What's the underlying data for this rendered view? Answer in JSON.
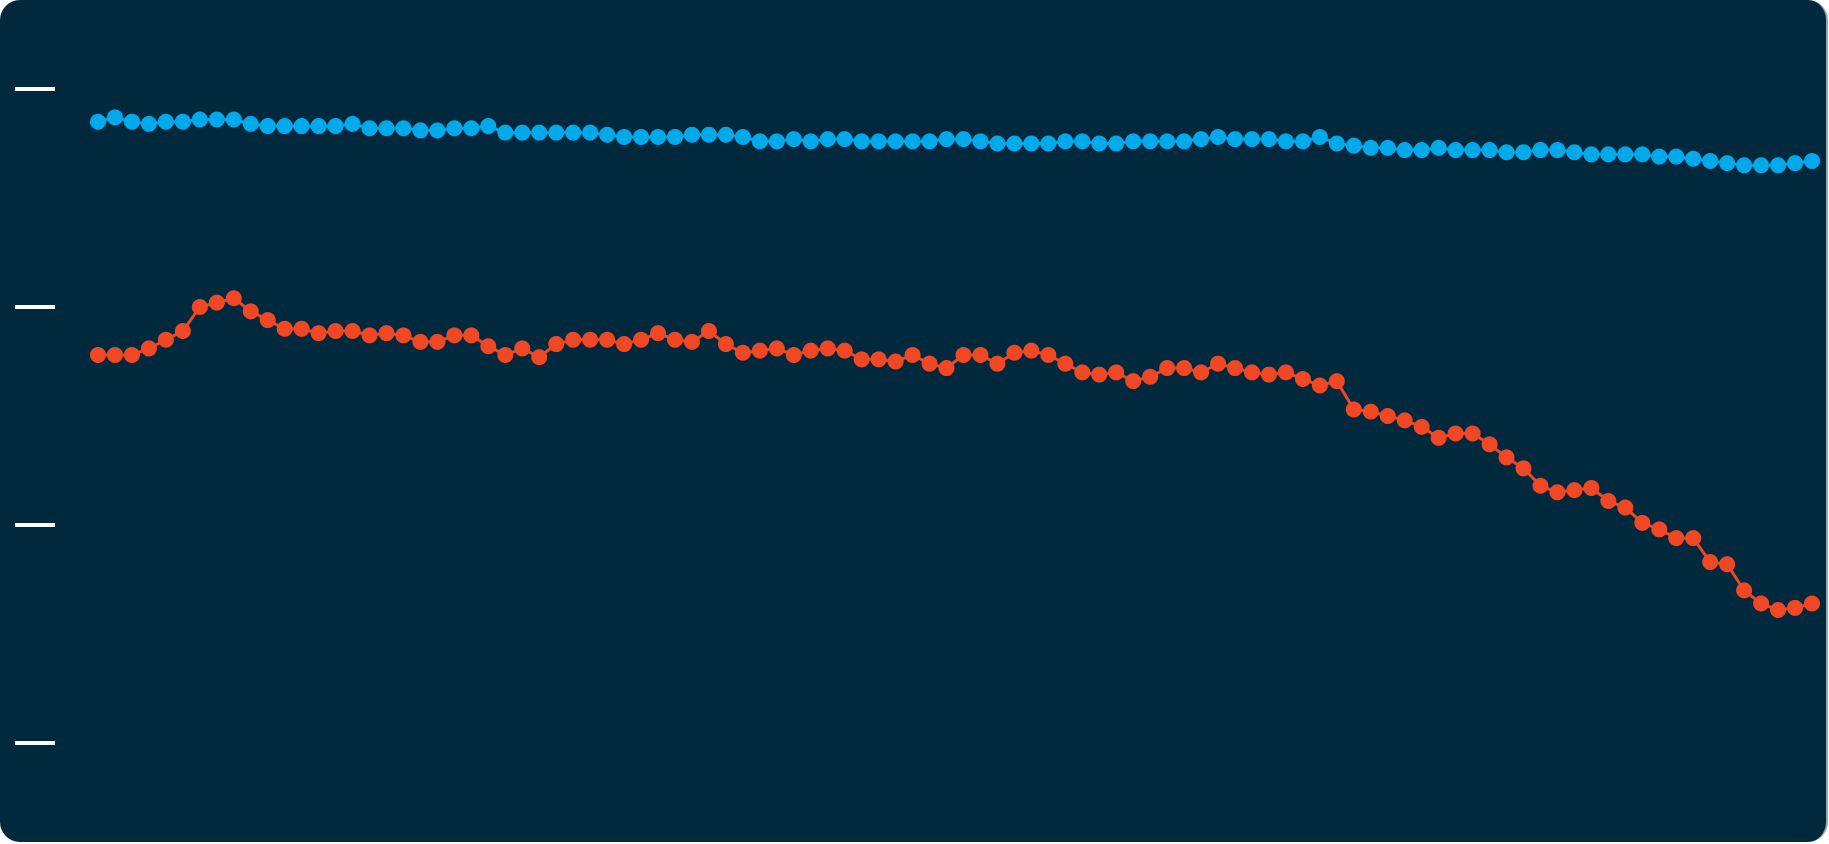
{
  "chart_data": {
    "type": "line",
    "title": "",
    "xlabel": "",
    "ylabel": "",
    "ylim": [
      0,
      3
    ],
    "y_ticks": [
      "",
      "",
      "",
      ""
    ],
    "grid": false,
    "legend": "none",
    "markers": true,
    "background_color": "#00293e",
    "tick_color": "#ffffff",
    "series": [
      {
        "color": "#00a9ea",
        "values": [
          2.85,
          2.87,
          2.85,
          2.84,
          2.85,
          2.85,
          2.86,
          2.86,
          2.86,
          2.84,
          2.83,
          2.83,
          2.83,
          2.83,
          2.83,
          2.84,
          2.82,
          2.82,
          2.82,
          2.81,
          2.81,
          2.82,
          2.82,
          2.83,
          2.8,
          2.8,
          2.8,
          2.8,
          2.8,
          2.8,
          2.79,
          2.78,
          2.78,
          2.78,
          2.78,
          2.79,
          2.79,
          2.79,
          2.78,
          2.76,
          2.76,
          2.77,
          2.76,
          2.77,
          2.77,
          2.76,
          2.76,
          2.76,
          2.76,
          2.76,
          2.77,
          2.77,
          2.76,
          2.75,
          2.75,
          2.75,
          2.75,
          2.76,
          2.76,
          2.75,
          2.75,
          2.76,
          2.76,
          2.76,
          2.76,
          2.77,
          2.78,
          2.77,
          2.77,
          2.77,
          2.76,
          2.76,
          2.78,
          2.75,
          2.74,
          2.73,
          2.73,
          2.72,
          2.72,
          2.73,
          2.72,
          2.72,
          2.72,
          2.71,
          2.71,
          2.72,
          2.72,
          2.71,
          2.7,
          2.7,
          2.7,
          2.7,
          2.69,
          2.69,
          2.68,
          2.67,
          2.66,
          2.65,
          2.65,
          2.65,
          2.66,
          2.67
        ]
      },
      {
        "color": "#f04724",
        "values": [
          1.78,
          1.78,
          1.78,
          1.81,
          1.85,
          1.89,
          2.0,
          2.02,
          2.04,
          1.98,
          1.94,
          1.9,
          1.9,
          1.88,
          1.89,
          1.89,
          1.87,
          1.88,
          1.87,
          1.84,
          1.84,
          1.87,
          1.87,
          1.82,
          1.78,
          1.81,
          1.77,
          1.83,
          1.85,
          1.85,
          1.85,
          1.83,
          1.85,
          1.88,
          1.85,
          1.84,
          1.89,
          1.83,
          1.79,
          1.8,
          1.81,
          1.78,
          1.8,
          1.81,
          1.8,
          1.76,
          1.76,
          1.75,
          1.78,
          1.74,
          1.72,
          1.78,
          1.78,
          1.74,
          1.79,
          1.8,
          1.78,
          1.74,
          1.7,
          1.69,
          1.7,
          1.66,
          1.68,
          1.72,
          1.72,
          1.7,
          1.74,
          1.72,
          1.7,
          1.69,
          1.7,
          1.67,
          1.64,
          1.66,
          1.53,
          1.52,
          1.5,
          1.48,
          1.45,
          1.4,
          1.42,
          1.42,
          1.37,
          1.31,
          1.26,
          1.18,
          1.15,
          1.16,
          1.17,
          1.11,
          1.08,
          1.01,
          0.98,
          0.94,
          0.94,
          0.83,
          0.82,
          0.7,
          0.64,
          0.61,
          0.62,
          0.64
        ]
      }
    ]
  }
}
